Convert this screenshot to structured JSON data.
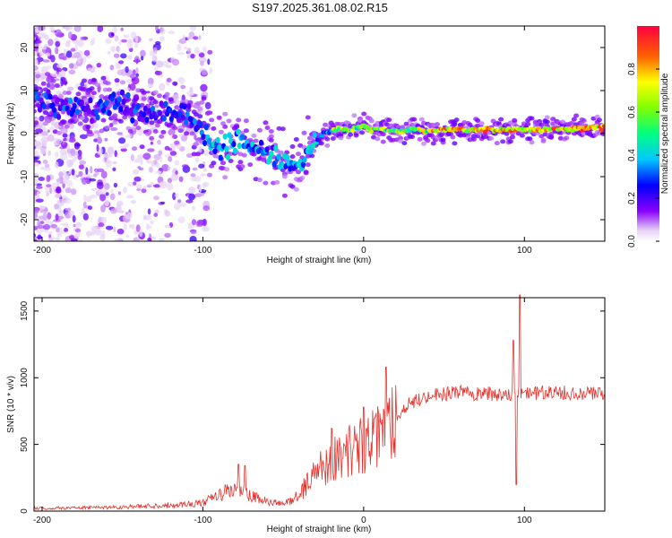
{
  "title": "S197.2025.361.08.02.R15",
  "chart_data": [
    {
      "type": "heatmap",
      "name": "spectrogram",
      "xlabel": "Height of straight line (km)",
      "ylabel": "Frequency (Hz)",
      "xlim": [
        -205,
        150
      ],
      "ylim": [
        -25,
        25
      ],
      "xticks": [
        -200,
        -100,
        0,
        100
      ],
      "yticks": [
        -20,
        -10,
        0,
        10,
        20
      ],
      "ridge_x": [
        -205,
        -195,
        -185,
        -175,
        -165,
        -155,
        -145,
        -135,
        -125,
        -118,
        -110,
        -100,
        -92,
        -85,
        -78,
        -72,
        -65,
        -58,
        -50,
        -44,
        -40,
        -35,
        -30,
        -25,
        -20,
        -15,
        -10,
        -5,
        0,
        5,
        10,
        20,
        30,
        40,
        60,
        80,
        90,
        100,
        120,
        150
      ],
      "ridge_y": [
        8,
        7,
        6,
        6,
        6,
        7,
        6,
        5,
        5,
        5,
        4,
        1,
        -4,
        -3,
        -1,
        -3,
        -4,
        -5,
        -6,
        -7,
        -8,
        -5,
        -2,
        0,
        1,
        1,
        1,
        1,
        2,
        1,
        1,
        0.5,
        0.8,
        0.8,
        0.8,
        0.8,
        1,
        0.8,
        1,
        1.5
      ],
      "colorbar": {
        "label": "Normalized spectral amplitude",
        "range": [
          0,
          1
        ],
        "ticks": [
          "0.0",
          "0.2",
          "0.4",
          "0.6",
          "0.8"
        ]
      }
    },
    {
      "type": "line",
      "name": "snr",
      "xlabel": "Height of straight line (km)",
      "ylabel": "SNR (10 * v/v)",
      "xlim": [
        -205,
        150
      ],
      "ylim": [
        0,
        1600
      ],
      "xticks": [
        -200,
        -100,
        0,
        100
      ],
      "yticks": [
        0,
        500,
        1000,
        1500
      ],
      "color": "#e8302a",
      "envelope_x": [
        -205,
        -150,
        -120,
        -100,
        -90,
        -80,
        -70,
        -60,
        -50,
        -40,
        -30,
        -20,
        -10,
        0,
        10,
        20,
        30,
        40,
        50,
        60,
        70,
        80,
        90,
        100,
        120,
        150
      ],
      "envelope_y": [
        20,
        30,
        45,
        60,
        120,
        170,
        110,
        70,
        50,
        120,
        300,
        380,
        450,
        500,
        550,
        720,
        820,
        860,
        880,
        890,
        880,
        880,
        880,
        880,
        890,
        880
      ],
      "spikes": [
        {
          "x": -78,
          "y": 350
        },
        {
          "x": -74,
          "y": 340
        },
        {
          "x": -20,
          "y": 620
        },
        {
          "x": 0,
          "y": 780
        },
        {
          "x": 14,
          "y": 1080
        },
        {
          "x": 93,
          "y": 1280
        },
        {
          "x": 95,
          "y": 200
        },
        {
          "x": 97,
          "y": 1620
        }
      ]
    }
  ]
}
